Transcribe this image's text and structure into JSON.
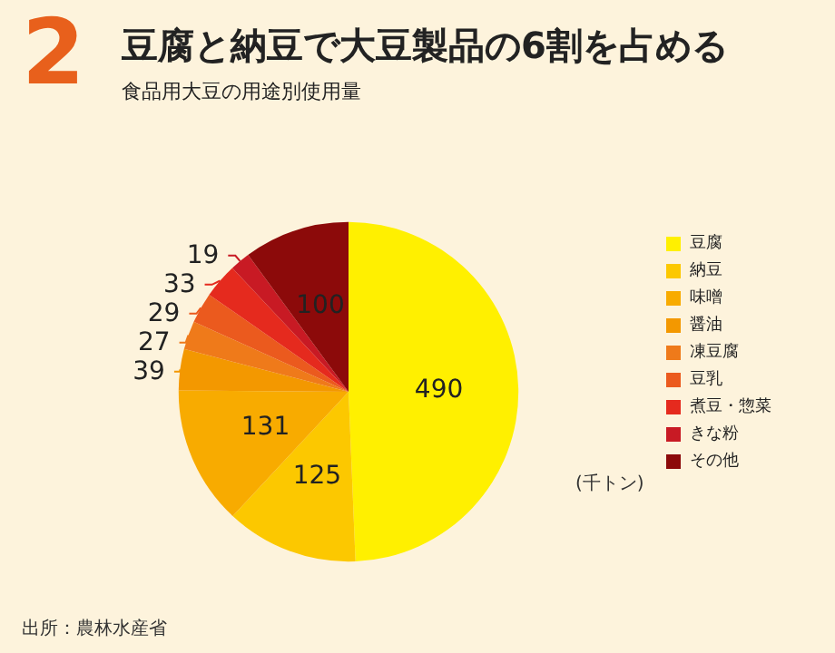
{
  "chart_data": {
    "type": "pie",
    "title": "豆腐と納豆で大豆製品の6割を占める",
    "subtitle": "食品用大豆の用途別使用量",
    "annotations": [
      "2",
      "(千トン)",
      "出所：農林水産省"
    ],
    "categories": [
      "豆腐",
      "納豆",
      "味噌",
      "醤油",
      "凍豆腐",
      "豆乳",
      "煮豆・惣菜",
      "きな粉",
      "その他"
    ],
    "values": [
      490,
      125,
      131,
      39,
      27,
      29,
      33,
      19,
      100
    ],
    "colors": [
      "#fff000",
      "#fcc800",
      "#f8ab00",
      "#f39800",
      "#ef7a1a",
      "#eb5a1e",
      "#e52a1e",
      "#c81a24",
      "#8c0a0a"
    ],
    "data_labels": true,
    "legend": "right"
  }
}
